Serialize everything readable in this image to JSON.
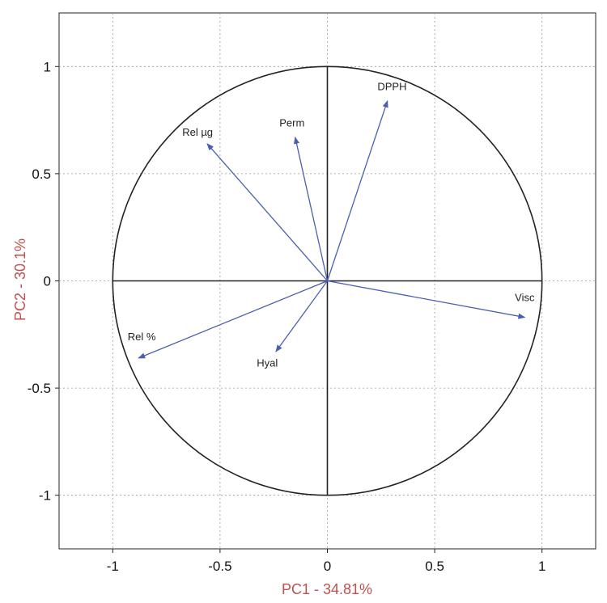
{
  "chart_data": {
    "type": "scatter",
    "subtype": "pca-correlation-circle",
    "title": "",
    "xlabel": "PC1 - 34.81%",
    "ylabel": "PC2 - 30.1%",
    "xlim": [
      -1.25,
      1.25
    ],
    "ylim": [
      -1.25,
      1.25
    ],
    "x_ticks": [
      {
        "value": -1,
        "label": "-1"
      },
      {
        "value": -0.5,
        "label": "-0.5"
      },
      {
        "value": 0,
        "label": "0"
      },
      {
        "value": 0.5,
        "label": "0.5"
      },
      {
        "value": 1,
        "label": "1"
      }
    ],
    "y_ticks": [
      {
        "value": 1,
        "label": "1"
      },
      {
        "value": 0.5,
        "label": "0.5"
      },
      {
        "value": 0,
        "label": "0"
      },
      {
        "value": -0.5,
        "label": "-0.5"
      },
      {
        "value": -1,
        "label": "-1"
      }
    ],
    "grid": true,
    "circle_radius": 1,
    "vector_color": "#4a5fb0",
    "vectors": [
      {
        "name": "DPPH",
        "x": 0.28,
        "y": 0.84
      },
      {
        "name": "Perm",
        "x": -0.15,
        "y": 0.67
      },
      {
        "name": "Rel µg",
        "x": -0.56,
        "y": 0.64
      },
      {
        "name": "Visc",
        "x": 0.92,
        "y": -0.17
      },
      {
        "name": "Rel %",
        "x": -0.88,
        "y": -0.36
      },
      {
        "name": "Hyal",
        "x": -0.24,
        "y": -0.33
      }
    ]
  }
}
